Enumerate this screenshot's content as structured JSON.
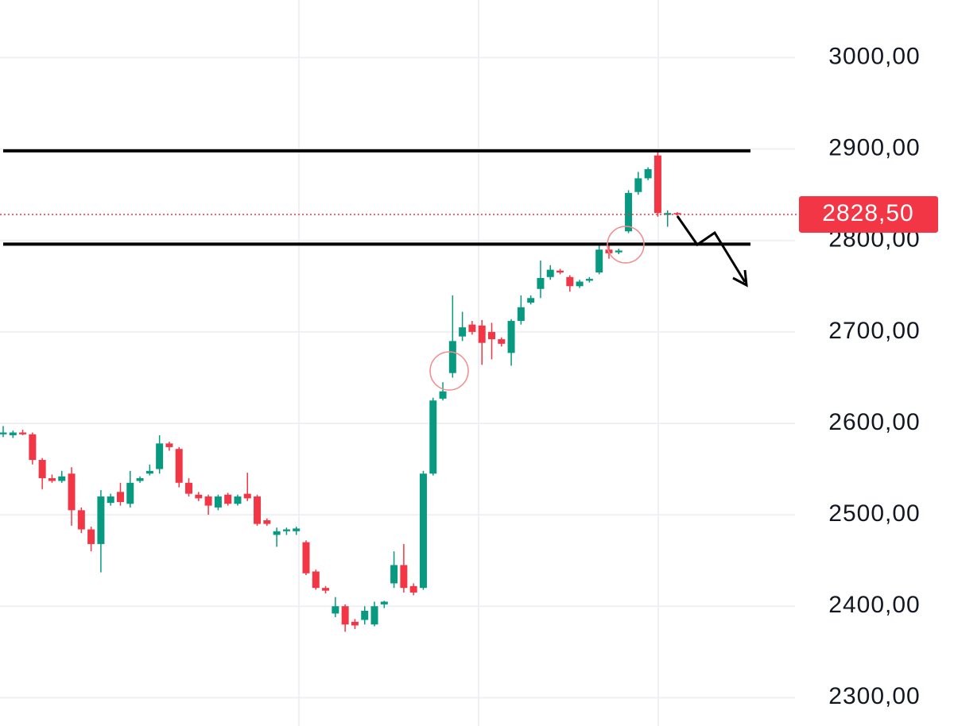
{
  "chart_data": {
    "type": "candlestick",
    "up_color": "#089981",
    "down_color": "#f23645",
    "open": [
      2588,
      2587,
      2590,
      2588,
      2560,
      2540,
      2537,
      2545,
      2505,
      2484,
      2468,
      2513,
      2525,
      2512,
      2537,
      2545,
      2550,
      2578,
      2572,
      2535,
      2522,
      2520,
      2508,
      2522,
      2512,
      2523,
      2520,
      2494,
      2478,
      2482,
      2482,
      2470,
      2438,
      2420,
      2392,
      2400,
      2383,
      2385,
      2380,
      2402,
      2425,
      2445,
      2422,
      2420,
      2545,
      2627,
      2655,
      2695,
      2708,
      2707,
      2700,
      2692,
      2677,
      2712,
      2732,
      2747,
      2760,
      2767,
      2760,
      2750,
      2756,
      2765,
      2790,
      2787,
      2810,
      2853,
      2868,
      2893,
      2828,
      2830
    ],
    "high": [
      2597,
      2592,
      2593,
      2590,
      2562,
      2544,
      2548,
      2552,
      2508,
      2487,
      2527,
      2523,
      2535,
      2548,
      2542,
      2555,
      2587,
      2580,
      2574,
      2540,
      2525,
      2522,
      2522,
      2524,
      2522,
      2546,
      2522,
      2496,
      2486,
      2486,
      2487,
      2472,
      2440,
      2422,
      2410,
      2402,
      2386,
      2400,
      2405,
      2406,
      2460,
      2468,
      2425,
      2548,
      2628,
      2645,
      2740,
      2722,
      2712,
      2713,
      2710,
      2694,
      2714,
      2740,
      2740,
      2778,
      2773,
      2769,
      2762,
      2757,
      2760,
      2797,
      2797,
      2791,
      2855,
      2875,
      2880,
      2897,
      2833,
      2831
    ],
    "low": [
      2585,
      2584,
      2587,
      2555,
      2528,
      2535,
      2535,
      2488,
      2480,
      2460,
      2437,
      2510,
      2510,
      2508,
      2535,
      2543,
      2545,
      2570,
      2530,
      2520,
      2515,
      2500,
      2505,
      2510,
      2510,
      2515,
      2488,
      2488,
      2465,
      2478,
      2478,
      2434,
      2418,
      2414,
      2388,
      2372,
      2375,
      2380,
      2378,
      2398,
      2420,
      2415,
      2412,
      2418,
      2543,
      2625,
      2650,
      2690,
      2697,
      2664,
      2670,
      2684,
      2663,
      2708,
      2730,
      2737,
      2757,
      2763,
      2744,
      2748,
      2754,
      2763,
      2780,
      2785,
      2808,
      2850,
      2866,
      2826,
      2815,
      2827
    ],
    "close": [
      2590,
      2590,
      2588,
      2560,
      2540,
      2537,
      2542,
      2505,
      2484,
      2468,
      2520,
      2520,
      2514,
      2535,
      2540,
      2548,
      2578,
      2574,
      2535,
      2523,
      2518,
      2510,
      2520,
      2512,
      2520,
      2518,
      2490,
      2490,
      2482,
      2484,
      2485,
      2436,
      2420,
      2417,
      2400,
      2380,
      2379,
      2395,
      2400,
      2405,
      2445,
      2420,
      2415,
      2545,
      2625,
      2635,
      2690,
      2705,
      2700,
      2688,
      2692,
      2687,
      2712,
      2727,
      2737,
      2759,
      2768,
      2765,
      2750,
      2755,
      2758,
      2790,
      2786,
      2789,
      2852,
      2868,
      2878,
      2830,
      2830,
      2828.5
    ],
    "levels": [
      2898,
      2796
    ],
    "last_price": {
      "value": 2828.5,
      "label": "2828,50"
    },
    "ylim": [
      2269,
      3063
    ],
    "yticks": [
      {
        "value": 3000,
        "label": "3000,00"
      },
      {
        "value": 2900,
        "label": "2900,00"
      },
      {
        "value": 2800,
        "label": "2800,00"
      },
      {
        "value": 2700,
        "label": "2700,00"
      },
      {
        "value": 2600,
        "label": "2600,00"
      },
      {
        "value": 2500,
        "label": "2500,00"
      },
      {
        "value": 2400,
        "label": "2400,00"
      },
      {
        "value": 2300,
        "label": "2300,00"
      }
    ],
    "grid": true
  }
}
